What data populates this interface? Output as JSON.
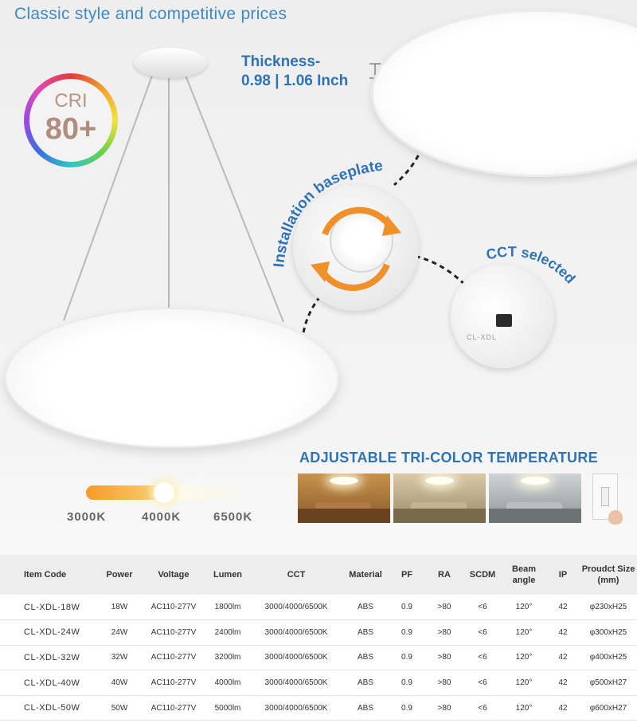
{
  "header": {
    "title": "Classic style and competitive prices"
  },
  "cri": {
    "label": "CRI",
    "value": "80+"
  },
  "thickness": {
    "line1": "Thickness-",
    "line2": "0.98 | 1.06 Inch"
  },
  "callouts": {
    "baseplate": "Installation baseplate",
    "cct": "CCT selected"
  },
  "tri_color": {
    "title": "ADJUSTABLE TRI-COLOR TEMPERATURE"
  },
  "temperature": {
    "labels": [
      "3000K",
      "4000K",
      "6500K"
    ],
    "selected_position": 0.5
  },
  "table": {
    "headers": [
      {
        "line1": "Item Code",
        "line2": ""
      },
      {
        "line1": "Power",
        "line2": ""
      },
      {
        "line1": "Voltage",
        "line2": ""
      },
      {
        "line1": "Lumen",
        "line2": ""
      },
      {
        "line1": "CCT",
        "line2": ""
      },
      {
        "line1": "Material",
        "line2": ""
      },
      {
        "line1": "PF",
        "line2": ""
      },
      {
        "line1": "RA",
        "line2": ""
      },
      {
        "line1": "SCDM",
        "line2": ""
      },
      {
        "line1": "Beam",
        "line2": "angle"
      },
      {
        "line1": "IP",
        "line2": ""
      },
      {
        "line1": "Proudct Size",
        "line2": "(mm)"
      }
    ],
    "rows": [
      [
        "CL-XDL-18W",
        "18W",
        "AC110-277V",
        "1800lm",
        "3000/4000/6500K",
        "ABS",
        "0.9",
        ">80",
        "<6",
        "120°",
        "42",
        "φ230xH25"
      ],
      [
        "CL-XDL-24W",
        "24W",
        "AC110-277V",
        "2400lm",
        "3000/4000/6500K",
        "ABS",
        "0.9",
        ">80",
        "<6",
        "120°",
        "42",
        "φ300xH25"
      ],
      [
        "CL-XDL-32W",
        "32W",
        "AC110-277V",
        "3200lm",
        "3000/4000/6500K",
        "ABS",
        "0.9",
        ">80",
        "<6",
        "120°",
        "42",
        "φ400xH25"
      ],
      [
        "CL-XDL-40W",
        "40W",
        "AC110-277V",
        "4000lm",
        "3000/4000/6500K",
        "ABS",
        "0.9",
        ">80",
        "<6",
        "120°",
        "42",
        "φ500xH27"
      ],
      [
        "CL-XDL-50W",
        "50W",
        "AC110-277V",
        "5000lm",
        "3000/4000/6500K",
        "ABS",
        "0.9",
        ">80",
        "<6",
        "120°",
        "42",
        "φ600xH27"
      ]
    ]
  },
  "colors": {
    "accent_blue": "#2f73b5",
    "title_blue": "#3d8ac4",
    "arrow_orange": "#f0902a"
  }
}
